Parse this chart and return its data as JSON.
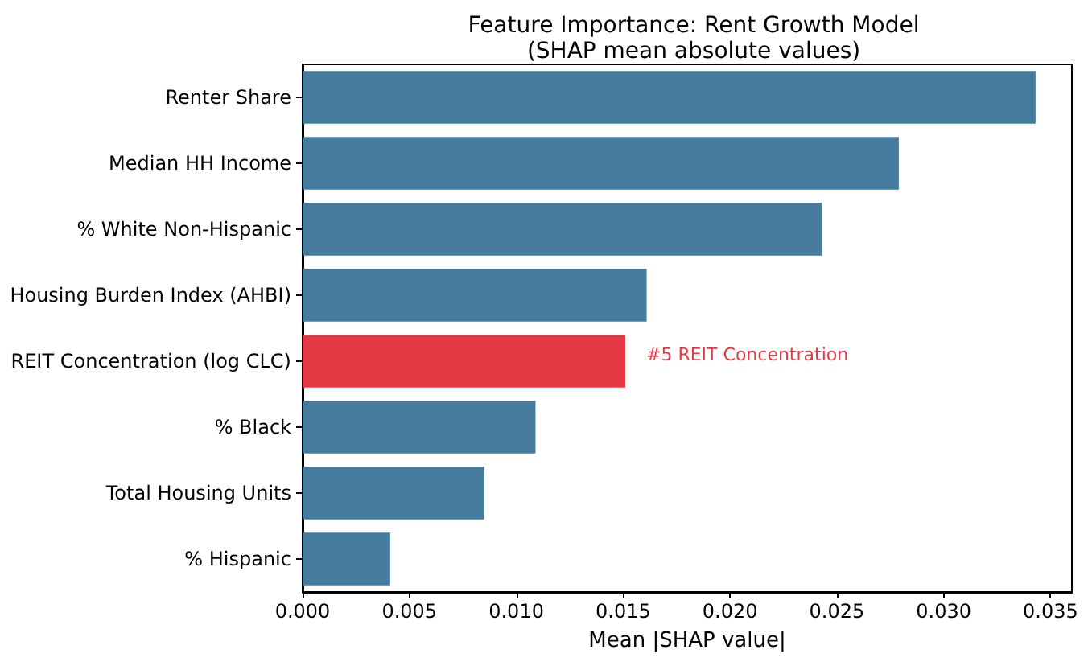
{
  "chart_data": {
    "type": "bar",
    "orientation": "horizontal",
    "title": "Feature Importance: Rent Growth Model",
    "subtitle": "(SHAP mean absolute values)",
    "xlabel": "Mean |SHAP value|",
    "categories": [
      "Renter Share",
      "Median HH Income",
      "% White Non-Hispanic",
      "Housing Burden Index (AHBI)",
      "REIT Concentration (log CLC)",
      "% Black",
      "Total Housing Units",
      "% Hispanic"
    ],
    "values": [
      0.0343,
      0.0279,
      0.0243,
      0.0161,
      0.0151,
      0.0109,
      0.0085,
      0.0041
    ],
    "colors": [
      "#457b9d",
      "#457b9d",
      "#457b9d",
      "#457b9d",
      "#e63946",
      "#457b9d",
      "#457b9d",
      "#457b9d"
    ],
    "xlim": [
      0,
      0.036
    ],
    "xticks": [
      {
        "value": 0,
        "label": "0.000"
      },
      0.005,
      {
        "value": 0.01,
        "label": "0.010"
      },
      0.015,
      {
        "value": 0.02,
        "label": "0.020"
      },
      0.025,
      {
        "value": 0.03,
        "label": "0.030"
      },
      0.035
    ],
    "annotations": [
      "#5 REIT Concentration"
    ],
    "grid": false
  }
}
